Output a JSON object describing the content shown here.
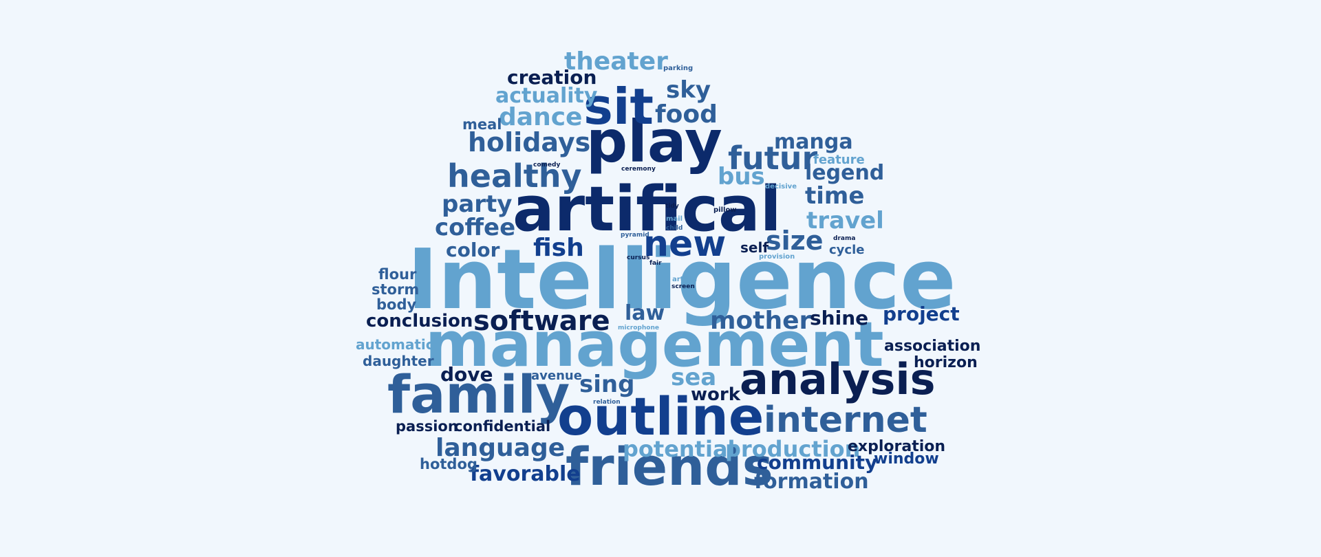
{
  "words": [
    {
      "text": "Intelligence",
      "tone": "c3"
    },
    {
      "text": "management",
      "tone": "c3"
    },
    {
      "text": "artifical",
      "tone": "c1"
    },
    {
      "text": "play",
      "tone": "c1"
    },
    {
      "text": "outline",
      "tone": "c4"
    },
    {
      "text": "friends",
      "tone": "c2"
    },
    {
      "text": "family",
      "tone": "c2"
    },
    {
      "text": "analysis",
      "tone": "c5"
    },
    {
      "text": "sit",
      "tone": "c4"
    },
    {
      "text": "internet",
      "tone": "c2"
    },
    {
      "text": "new",
      "tone": "c4"
    },
    {
      "text": "software",
      "tone": "c5"
    },
    {
      "text": "futur",
      "tone": "c2"
    },
    {
      "text": "healthy",
      "tone": "c2"
    },
    {
      "text": "holidays",
      "tone": "c2"
    },
    {
      "text": "theater",
      "tone": "c3"
    },
    {
      "text": "dance",
      "tone": "c3"
    },
    {
      "text": "size",
      "tone": "c2"
    },
    {
      "text": "mother",
      "tone": "c2"
    },
    {
      "text": "language",
      "tone": "c2"
    },
    {
      "text": "food",
      "tone": "c2"
    },
    {
      "text": "party",
      "tone": "c2"
    },
    {
      "text": "coffee",
      "tone": "c2"
    },
    {
      "text": "fish",
      "tone": "c4"
    },
    {
      "text": "sea",
      "tone": "c3"
    },
    {
      "text": "sing",
      "tone": "c2"
    },
    {
      "text": "travel",
      "tone": "c3"
    },
    {
      "text": "time",
      "tone": "c2"
    },
    {
      "text": "legend",
      "tone": "c2"
    },
    {
      "text": "bus",
      "tone": "c3"
    },
    {
      "text": "potential",
      "tone": "c3"
    },
    {
      "text": "production",
      "tone": "c3"
    },
    {
      "text": "community",
      "tone": "c4"
    },
    {
      "text": "formation",
      "tone": "c2"
    },
    {
      "text": "favorable",
      "tone": "c4"
    },
    {
      "text": "creation",
      "tone": "c5"
    },
    {
      "text": "actuality",
      "tone": "c3"
    },
    {
      "text": "sky",
      "tone": "c2"
    },
    {
      "text": "manga",
      "tone": "c2"
    },
    {
      "text": "color",
      "tone": "c2"
    },
    {
      "text": "law",
      "tone": "c2"
    },
    {
      "text": "shine",
      "tone": "c5"
    },
    {
      "text": "project",
      "tone": "c4"
    },
    {
      "text": "conclusion",
      "tone": "c5"
    },
    {
      "text": "dove",
      "tone": "c5"
    },
    {
      "text": "work",
      "tone": "c5"
    },
    {
      "text": "exploration",
      "tone": "c5"
    },
    {
      "text": "window",
      "tone": "c4"
    },
    {
      "text": "association",
      "tone": "c5"
    },
    {
      "text": "horizon",
      "tone": "c5"
    },
    {
      "text": "passion",
      "tone": "c5"
    },
    {
      "text": "confidential",
      "tone": "c5"
    },
    {
      "text": "hotdog",
      "tone": "c2"
    },
    {
      "text": "meal",
      "tone": "c2"
    },
    {
      "text": "flour",
      "tone": "c2"
    },
    {
      "text": "storm",
      "tone": "c2"
    },
    {
      "text": "body",
      "tone": "c2"
    },
    {
      "text": "automatic",
      "tone": "c3"
    },
    {
      "text": "daughter",
      "tone": "c2"
    },
    {
      "text": "avenue",
      "tone": "c2"
    },
    {
      "text": "self",
      "tone": "c5"
    },
    {
      "text": "cycle",
      "tone": "c2"
    },
    {
      "text": "feature",
      "tone": "c3"
    },
    {
      "text": "parking",
      "tone": "c2"
    },
    {
      "text": "comedy",
      "tone": "c5"
    },
    {
      "text": "ceremony",
      "tone": "c5"
    },
    {
      "text": "decisive",
      "tone": "c3"
    },
    {
      "text": "tidy",
      "tone": "c5"
    },
    {
      "text": "pillow",
      "tone": "c5"
    },
    {
      "text": "mail",
      "tone": "c3"
    },
    {
      "text": "child",
      "tone": "c2"
    },
    {
      "text": "pyramid",
      "tone": "c2"
    },
    {
      "text": "drama",
      "tone": "c5"
    },
    {
      "text": "provision",
      "tone": "c3"
    },
    {
      "text": "cursus",
      "tone": "c5"
    },
    {
      "text": "fair",
      "tone": "c5"
    },
    {
      "text": "article",
      "tone": "c3"
    },
    {
      "text": "screen",
      "tone": "c5"
    },
    {
      "text": "microphone",
      "tone": "c3"
    },
    {
      "text": "relation",
      "tone": "c2"
    }
  ]
}
